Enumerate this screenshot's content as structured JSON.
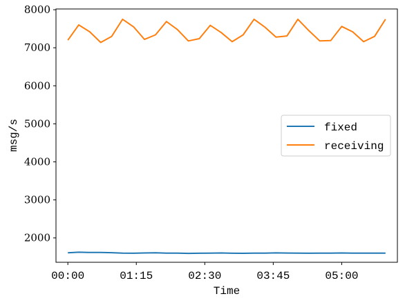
{
  "chart_data": {
    "type": "line",
    "title": "",
    "xlabel": "Time",
    "ylabel": "msg/s",
    "x_tick_labels": [
      "00:00",
      "01:15",
      "02:30",
      "03:45",
      "05:00"
    ],
    "x_tick_minutes": [
      0,
      75,
      150,
      225,
      300
    ],
    "x": [
      0,
      12,
      24,
      36,
      48,
      60,
      72,
      84,
      96,
      108,
      120,
      132,
      144,
      156,
      168,
      180,
      192,
      204,
      216,
      228,
      240,
      252,
      264,
      276,
      288,
      300,
      312,
      324,
      336,
      348
    ],
    "x_unit": "minutes",
    "y_ticks": [
      2000,
      3000,
      4000,
      5000,
      6000,
      7000,
      8000
    ],
    "xlim": [
      -13,
      361
    ],
    "ylim": [
      1360,
      8020
    ],
    "grid": false,
    "legend_position": "center-right",
    "series": [
      {
        "name": "fixed",
        "color": "#1f77b4",
        "values": [
          1610,
          1625,
          1618,
          1620,
          1612,
          1600,
          1598,
          1605,
          1610,
          1602,
          1600,
          1595,
          1598,
          1600,
          1605,
          1598,
          1596,
          1600,
          1602,
          1606,
          1604,
          1600,
          1598,
          1600,
          1602,
          1605,
          1600,
          1600,
          1602,
          1600
        ]
      },
      {
        "name": "receiving",
        "color": "#ff7f0e",
        "values": [
          7200,
          7600,
          7420,
          7140,
          7300,
          7750,
          7550,
          7220,
          7340,
          7690,
          7480,
          7180,
          7240,
          7590,
          7400,
          7160,
          7340,
          7750,
          7540,
          7280,
          7310,
          7750,
          7450,
          7180,
          7190,
          7560,
          7420,
          7160,
          7300,
          7750
        ]
      }
    ]
  }
}
